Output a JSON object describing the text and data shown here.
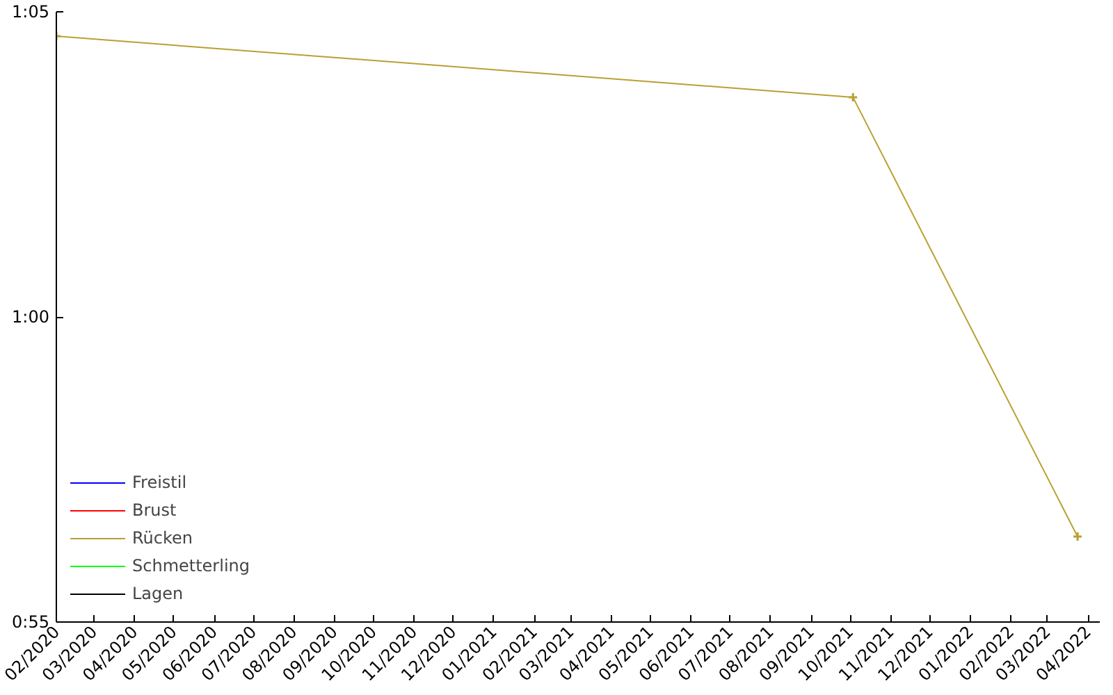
{
  "chart_data": {
    "type": "line",
    "x": [
      "2020-02-01",
      "2021-10-03",
      "2022-03-24"
    ],
    "series": [
      {
        "name": "Freistil",
        "color": "#0000ff",
        "values": [
          null,
          null,
          null
        ]
      },
      {
        "name": "Brust",
        "color": "#ff0000",
        "values": [
          null,
          null,
          null
        ]
      },
      {
        "name": "Rücken",
        "color": "#b8a032",
        "values": [
          64.6,
          63.6,
          56.4
        ]
      },
      {
        "name": "Schmetterling",
        "color": "#00ff00",
        "values": [
          null,
          null,
          null
        ]
      },
      {
        "name": "Lagen",
        "color": "#000000",
        "values": [
          null,
          null,
          null
        ]
      }
    ],
    "xlim": [
      "2020-02-01",
      "2022-04-10"
    ],
    "xticks": [
      {
        "value": "2020-02",
        "label": "02/2020"
      },
      {
        "value": "2020-03",
        "label": "03/2020"
      },
      {
        "value": "2020-04",
        "label": "04/2020"
      },
      {
        "value": "2020-05",
        "label": "05/2020"
      },
      {
        "value": "2020-06",
        "label": "06/2020"
      },
      {
        "value": "2020-07",
        "label": "07/2020"
      },
      {
        "value": "2020-08",
        "label": "08/2020"
      },
      {
        "value": "2020-09",
        "label": "09/2020"
      },
      {
        "value": "2020-10",
        "label": "10/2020"
      },
      {
        "value": "2020-11",
        "label": "11/2020"
      },
      {
        "value": "2020-12",
        "label": "12/2020"
      },
      {
        "value": "2021-01",
        "label": "01/2021"
      },
      {
        "value": "2021-02",
        "label": "02/2021"
      },
      {
        "value": "2021-03",
        "label": "03/2021"
      },
      {
        "value": "2021-04",
        "label": "04/2021"
      },
      {
        "value": "2021-05",
        "label": "05/2021"
      },
      {
        "value": "2021-06",
        "label": "06/2021"
      },
      {
        "value": "2021-07",
        "label": "07/2021"
      },
      {
        "value": "2021-08",
        "label": "08/2021"
      },
      {
        "value": "2021-09",
        "label": "09/2021"
      },
      {
        "value": "2021-10",
        "label": "10/2021"
      },
      {
        "value": "2021-11",
        "label": "11/2021"
      },
      {
        "value": "2021-12",
        "label": "12/2021"
      },
      {
        "value": "2022-01",
        "label": "01/2022"
      },
      {
        "value": "2022-02",
        "label": "02/2022"
      },
      {
        "value": "2022-03",
        "label": "03/2022"
      },
      {
        "value": "2022-04",
        "label": "04/2022"
      }
    ],
    "ylim": [
      55,
      65
    ],
    "yticks": [
      {
        "value": 55,
        "label": "0:55"
      },
      {
        "value": 60,
        "label": "1:00"
      },
      {
        "value": 65,
        "label": "1:05"
      }
    ],
    "marker": "cross",
    "line_style": "solid",
    "grid": false,
    "legend": "bottom left"
  }
}
